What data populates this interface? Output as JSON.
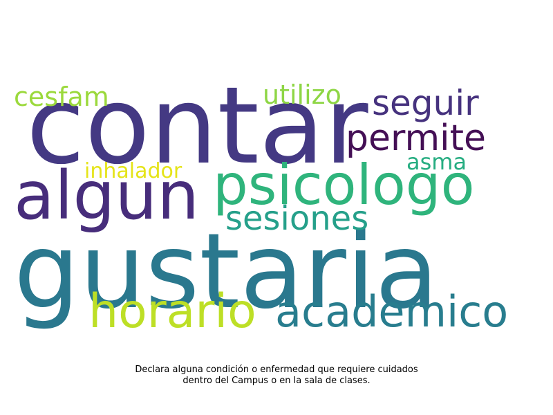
{
  "words": [
    {
      "key": "contar",
      "text": "contar",
      "color": "#443983"
    },
    {
      "key": "gustaria",
      "text": "gustaria",
      "color": "#2a788e"
    },
    {
      "key": "algun",
      "text": "algun",
      "color": "#472d7b"
    },
    {
      "key": "psicologo",
      "text": "psicologo",
      "color": "#2fb47c"
    },
    {
      "key": "horario",
      "text": "horario",
      "color": "#bddf26"
    },
    {
      "key": "academico",
      "text": "academico",
      "color": "#287d8e"
    },
    {
      "key": "permite",
      "text": "permite",
      "color": "#440f55"
    },
    {
      "key": "seguir",
      "text": "seguir",
      "color": "#46327e"
    },
    {
      "key": "sesiones",
      "text": "sesiones",
      "color": "#25a08a"
    },
    {
      "key": "utilizo",
      "text": "utilizo",
      "color": "#8ed645"
    },
    {
      "key": "cesfam",
      "text": "cesfam",
      "color": "#9bd93c"
    },
    {
      "key": "asma",
      "text": "asma",
      "color": "#26ad81"
    },
    {
      "key": "inhalador",
      "text": "inhalador",
      "color": "#e5e419"
    }
  ],
  "caption": {
    "line1": "Declara alguna condición o enfermedad que requiere cuidados",
    "line2": "dentro del Campus o en la sala de clases."
  }
}
